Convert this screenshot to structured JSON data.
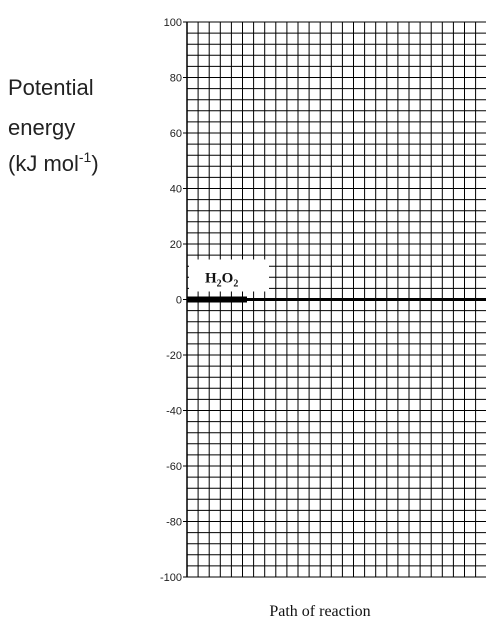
{
  "chart_data": {
    "type": "line",
    "title": "",
    "ylabel": {
      "line1": "Potential",
      "line2": "energy",
      "line3_prefix": "(kJ mol",
      "line3_sup": "-1",
      "line3_suffix": ")"
    },
    "xlabel": "Path of reaction",
    "ylim": [
      -100,
      100
    ],
    "yticks": [
      100,
      80,
      60,
      40,
      20,
      0,
      -20,
      -40,
      -60,
      -80,
      -100
    ],
    "grid": true,
    "grid_minor_step": 4,
    "series": [
      {
        "label": "H2O2",
        "level": 0
      }
    ],
    "species_label": {
      "main1": "H",
      "sub1": "2",
      "main2": "O",
      "sub2": "2"
    },
    "colors": {
      "grid": "#000000",
      "text": "#222222",
      "series": "#000000"
    }
  }
}
